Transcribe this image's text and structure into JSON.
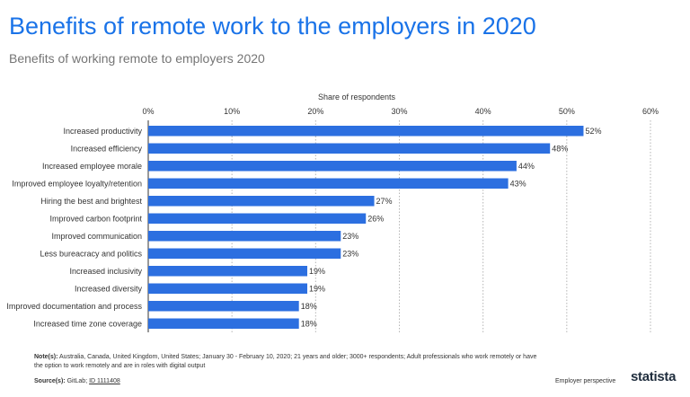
{
  "title": "Benefits of remote work to the employers in 2020",
  "subtitle": "Benefits of working remote to employers 2020",
  "chart_data": {
    "type": "bar",
    "orientation": "horizontal",
    "xlabel": "Share of respondents",
    "xlim": [
      0,
      60
    ],
    "xticks": [
      "0%",
      "10%",
      "20%",
      "30%",
      "40%",
      "50%",
      "60%"
    ],
    "grid": true,
    "color": "#2c6fe0",
    "categories": [
      "Increased productivity",
      "Increased efficiency",
      "Increased employee morale",
      "Improved employee loyalty/retention",
      "Hiring the best and brightest",
      "Improved carbon footprint",
      "Improved communication",
      "Less bureacracy and politics",
      "Increased inclusivity",
      "Increased diversity",
      "Improved documentation and process",
      "Increased time zone coverage"
    ],
    "values": [
      52,
      48,
      44,
      43,
      27,
      26,
      23,
      23,
      19,
      19,
      18,
      18
    ],
    "value_labels": [
      "52%",
      "48%",
      "44%",
      "43%",
      "27%",
      "26%",
      "23%",
      "23%",
      "19%",
      "19%",
      "18%",
      "18%"
    ]
  },
  "notes_label": "Note(s):",
  "notes_text": "Australia, Canada, United Kingdom, United States; January 30 - February 10, 2020; 21 years and older; 3000+ respondents; Adult professionals who work remotely or have the option to work remotely and are in roles with digital output",
  "source_label": "Source(s):",
  "source_text": "GitLab;",
  "source_link": "ID 1111408",
  "perspective": "Employer perspective",
  "logo": "statista"
}
